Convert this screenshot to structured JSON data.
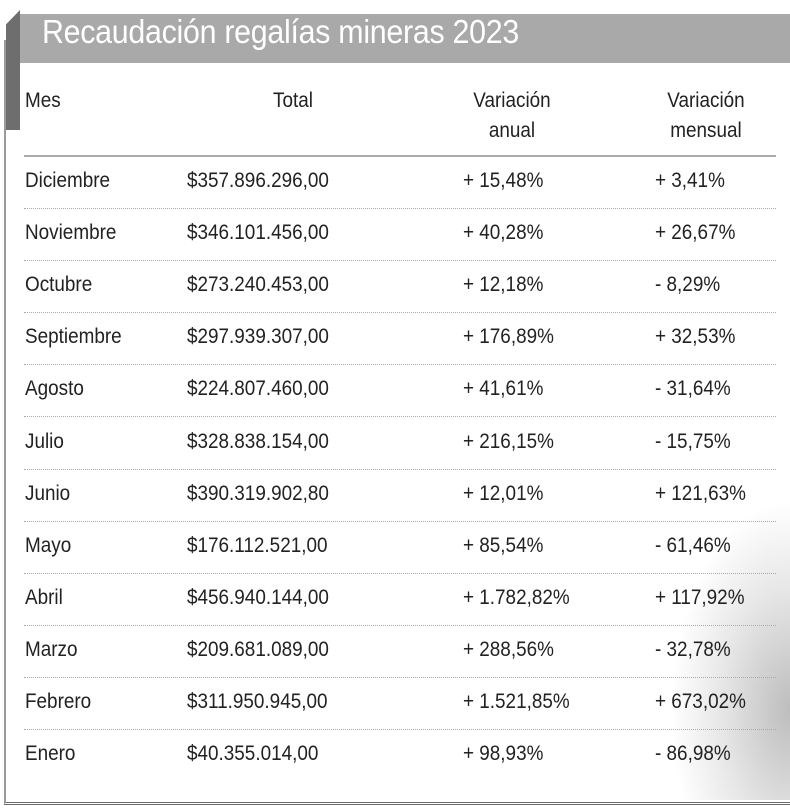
{
  "title": "Recaudación regalías mineras 2023",
  "headers": {
    "mes": "Mes",
    "total": "Total",
    "anual": [
      "Variación",
      "anual"
    ],
    "mensual": [
      "Variación",
      "mensual"
    ]
  },
  "rows": [
    {
      "mes": "Diciembre",
      "total": "$357.896.296,00",
      "anual": "+ 15,48%",
      "mensual": "+ 3,41%"
    },
    {
      "mes": "Noviembre",
      "total": "$346.101.456,00",
      "anual": "+ 40,28%",
      "mensual": "+ 26,67%"
    },
    {
      "mes": "Octubre",
      "total": "$273.240.453,00",
      "anual": "+ 12,18%",
      "mensual": "- 8,29%"
    },
    {
      "mes": "Septiembre",
      "total": "$297.939.307,00",
      "anual": "+ 176,89%",
      "mensual": "+ 32,53%"
    },
    {
      "mes": "Agosto",
      "total": "$224.807.460,00",
      "anual": "+ 41,61%",
      "mensual": "- 31,64%"
    },
    {
      "mes": "Julio",
      "total": "$328.838.154,00",
      "anual": "+ 216,15%",
      "mensual": "- 15,75%"
    },
    {
      "mes": "Junio",
      "total": "$390.319.902,80",
      "anual": "+ 12,01%",
      "mensual": "+ 121,63%"
    },
    {
      "mes": "Mayo",
      "total": "$176.112.521,00",
      "anual": "+ 85,54%",
      "mensual": "- 61,46%"
    },
    {
      "mes": "Abril",
      "total": "$456.940.144,00",
      "anual": "+ 1.782,82%",
      "mensual": "+ 117,92%"
    },
    {
      "mes": "Marzo",
      "total": "$209.681.089,00",
      "anual": "+ 288,56%",
      "mensual": "- 32,78%"
    },
    {
      "mes": "Febrero",
      "total": "$311.950.945,00",
      "anual": "+ 1.521,85%",
      "mensual": "+ 673,02%"
    },
    {
      "mes": "Enero",
      "total": "$40.355.014,00",
      "anual": "+ 98,93%",
      "mensual": "- 86,98%"
    }
  ],
  "colors": {
    "title_bar": "#a9a9a9",
    "title_tab": "#6e6e6e",
    "title_text": "#ffffff"
  }
}
